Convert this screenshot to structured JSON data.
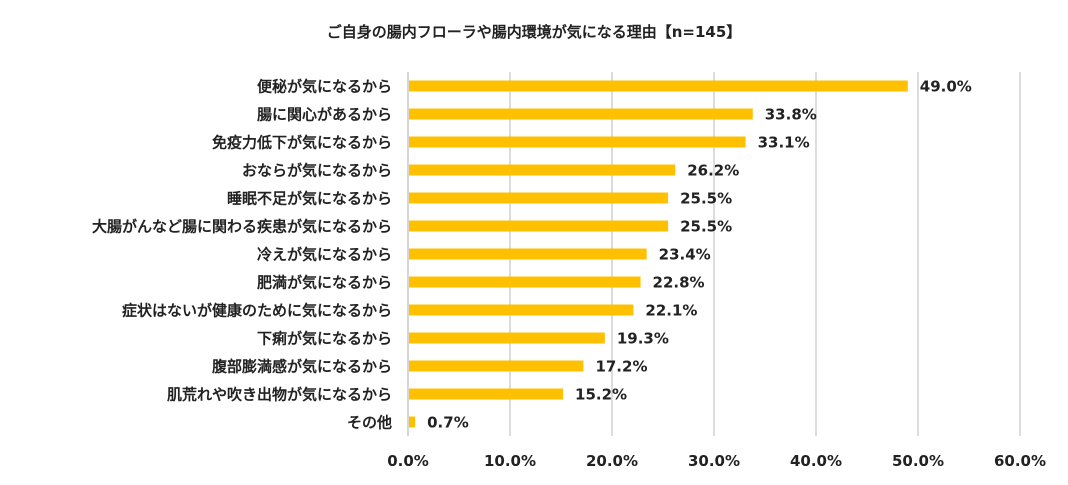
{
  "chart_data": {
    "type": "bar",
    "orientation": "horizontal",
    "title": "ご自身の腸内フローラや腸内環境が気になる理由【n=145】",
    "categories": [
      "便秘が気になるから",
      "腸に関心があるから",
      "免疫力低下が気になるから",
      "おならが気になるから",
      "睡眠不足が気になるから",
      "大腸がんなど腸に関わる疾患が気になるから",
      "冷えが気になるから",
      "肥満が気になるから",
      "症状はないが健康のために気になるから",
      "下痢が気になるから",
      "腹部膨満感が気になるから",
      "肌荒れや吹き出物が気になるから",
      "その他"
    ],
    "values": [
      49.0,
      33.8,
      33.1,
      26.2,
      25.5,
      25.5,
      23.4,
      22.8,
      22.1,
      19.3,
      17.2,
      15.2,
      0.7
    ],
    "value_labels": [
      "49.0%",
      "33.8%",
      "33.1%",
      "26.2%",
      "25.5%",
      "25.5%",
      "23.4%",
      "22.8%",
      "22.1%",
      "19.3%",
      "17.2%",
      "15.2%",
      "0.7%"
    ],
    "xlim": [
      0,
      60
    ],
    "xticks": [
      0,
      10,
      20,
      30,
      40,
      50,
      60
    ],
    "xtick_labels": [
      "0.0%",
      "10.0%",
      "20.0%",
      "30.0%",
      "40.0%",
      "50.0%",
      "60.0%"
    ],
    "grid": true,
    "legend": "none",
    "bar_color": "#FFC000"
  }
}
